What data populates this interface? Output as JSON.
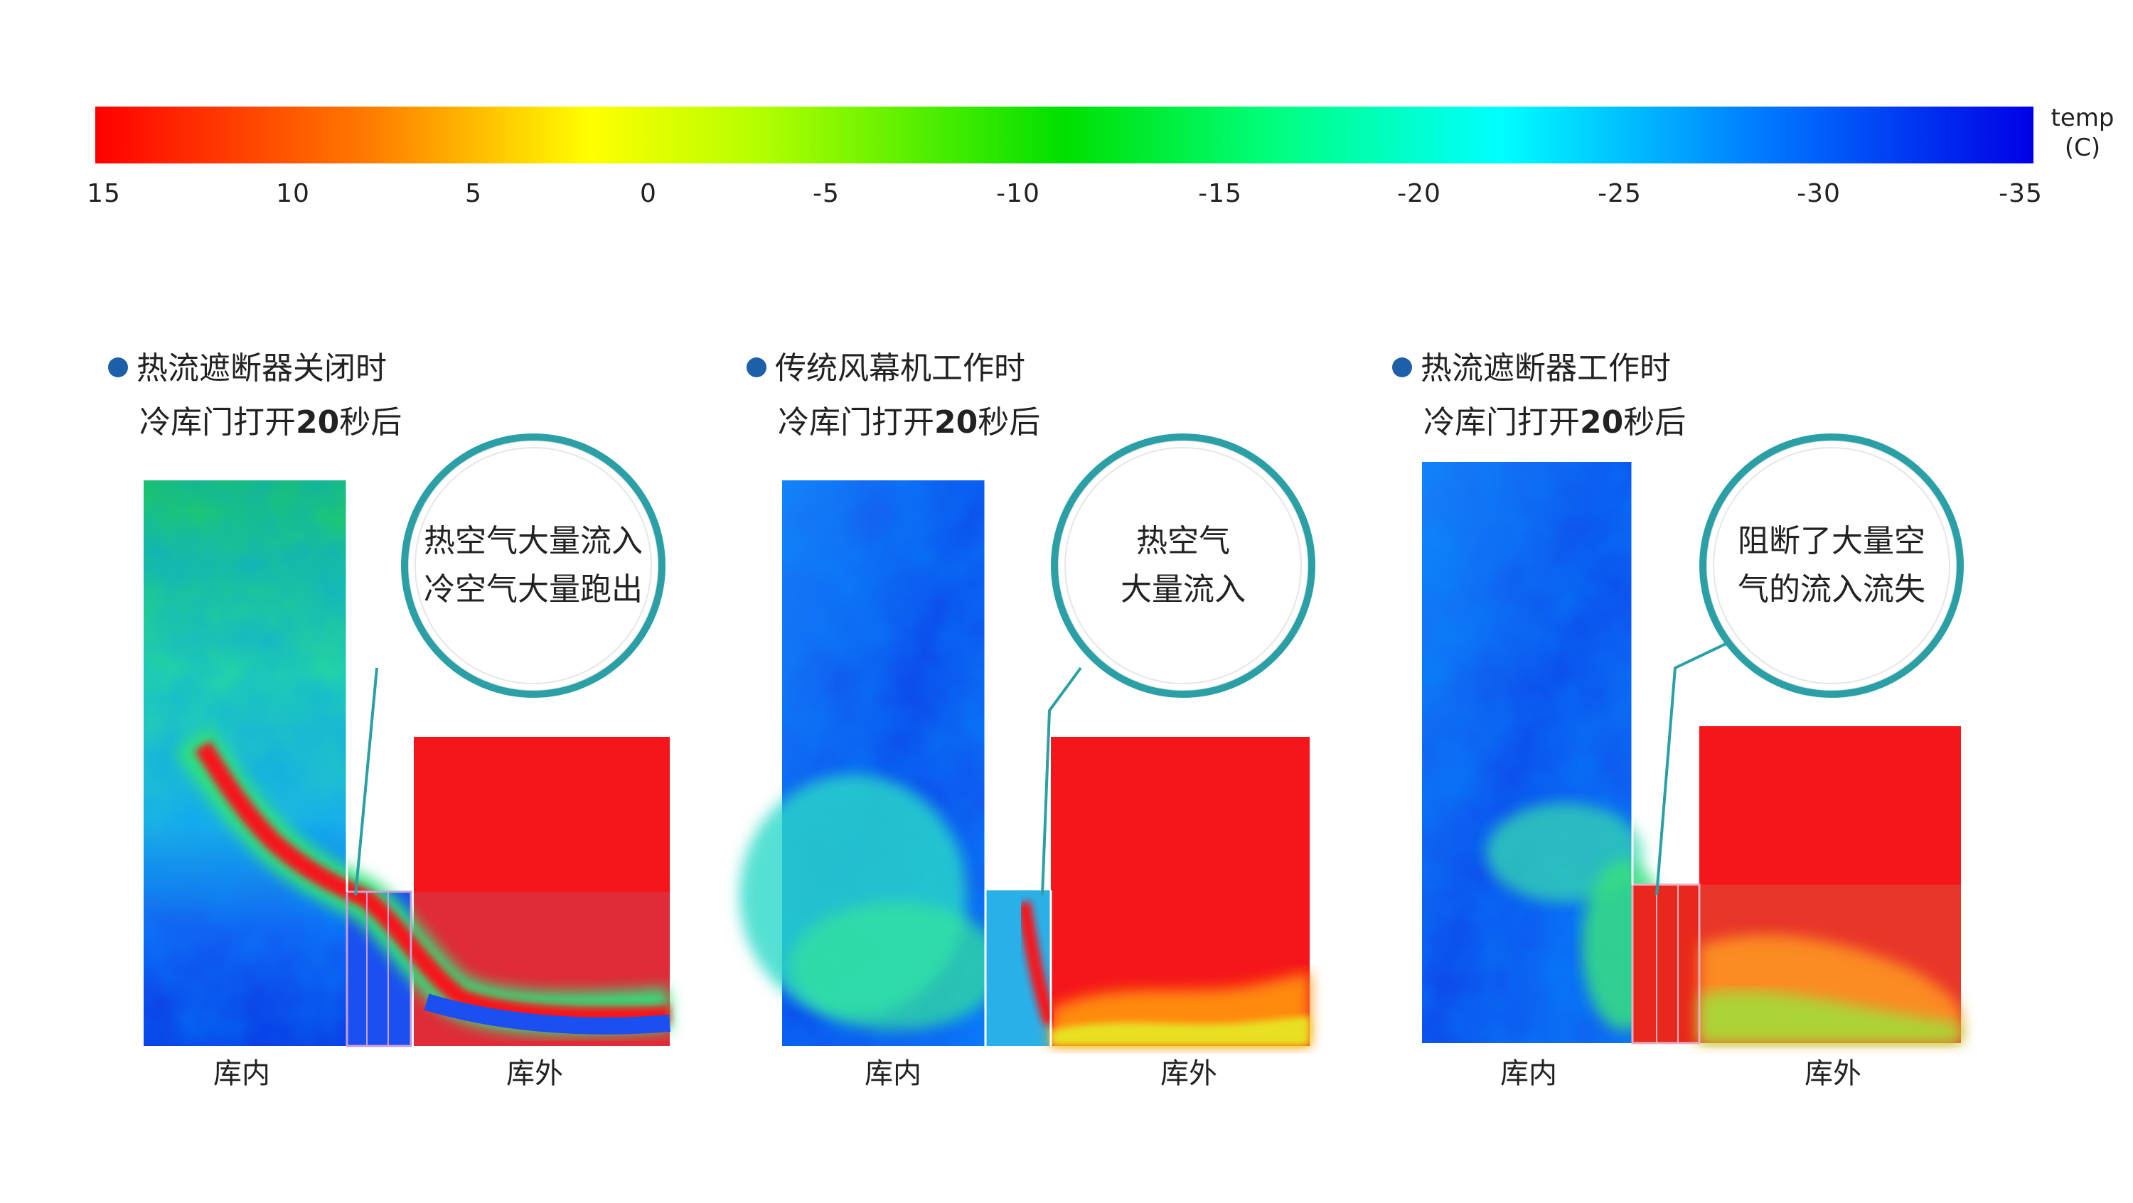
{
  "colorbar": {
    "ticks": [
      "15",
      "10",
      "5",
      "0",
      "-5",
      "-10",
      "-15",
      "-20",
      "-25",
      "-30",
      "-35"
    ],
    "unit_line1": "temp",
    "unit_line2": "(C)",
    "stops": [
      "#ff0000",
      "#ff7a00",
      "#ffff00",
      "#b6ff00",
      "#00e000",
      "#00ff80",
      "#00ffff",
      "#007aff",
      "#0000e6"
    ]
  },
  "panels": [
    {
      "title": "热流遮断器关闭时",
      "subtitle_pre": "冷库门打开",
      "subtitle_num": "20",
      "subtitle_post": "秒后",
      "callout_line1": "热空气大量流入",
      "callout_line2": "冷空气大量跑出",
      "label_inside": "库内",
      "label_outside": "库外"
    },
    {
      "title": "传统风幕机工作时",
      "subtitle_pre": "冷库门打开",
      "subtitle_num": "20",
      "subtitle_post": "秒后",
      "callout_line1": "热空气",
      "callout_line2": "大量流入",
      "label_inside": "库内",
      "label_outside": "库外"
    },
    {
      "title": "热流遮断器工作时",
      "subtitle_pre": "冷库门打开",
      "subtitle_num": "20",
      "subtitle_post": "秒后",
      "callout_line1": "阻断了大量空",
      "callout_line2": "气的流入流失",
      "label_inside": "库内",
      "label_outside": "库外"
    }
  ],
  "colors": {
    "accent_teal": "#2aa0a6",
    "bullet_blue": "#1d5fa8",
    "hot_red": "#f5161b"
  }
}
